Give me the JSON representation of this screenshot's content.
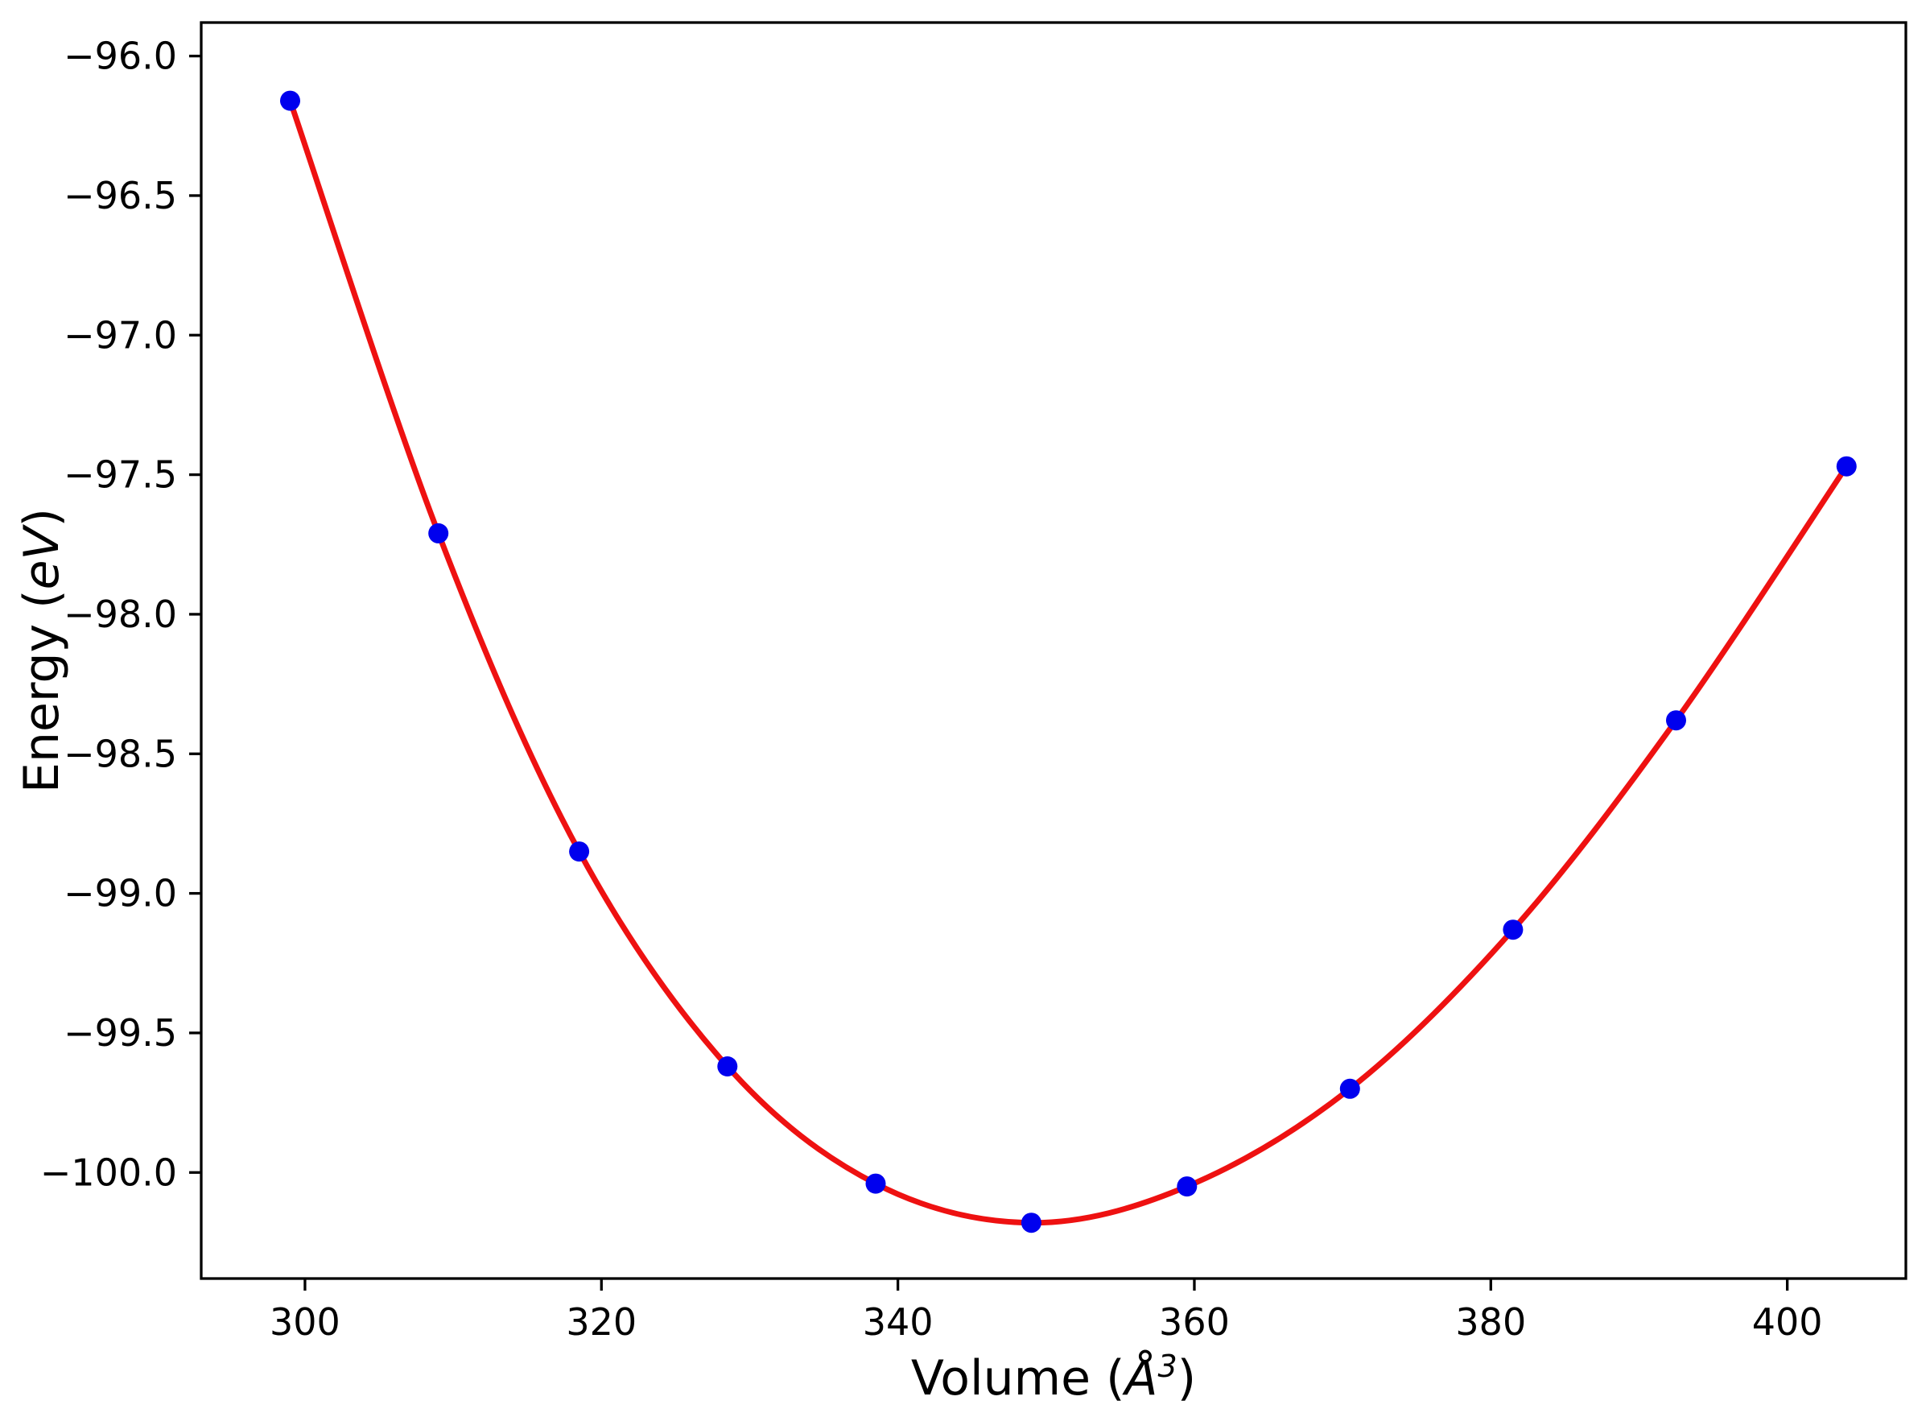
{
  "chart_data": {
    "type": "scatter",
    "title": "",
    "xlabel": "Volume (Å³)",
    "ylabel": "Energy (eV)",
    "xlim": [
      293,
      408
    ],
    "ylim": [
      -100.38,
      -95.88
    ],
    "grid": false,
    "legend": null,
    "axis_color": "#000000",
    "x_ticks": {
      "values": [
        300,
        320,
        340,
        360,
        380,
        400
      ],
      "labels": [
        "300",
        "320",
        "340",
        "360",
        "380",
        "400"
      ]
    },
    "y_ticks": {
      "values": [
        -96.0,
        -96.5,
        -97.0,
        -97.5,
        -98.0,
        -98.5,
        -99.0,
        -99.5,
        -100.0
      ],
      "labels": [
        "−96.0",
        "−96.5",
        "−97.0",
        "−97.5",
        "−98.0",
        "−98.5",
        "−99.0",
        "−99.5",
        "−100.0"
      ]
    },
    "series": [
      {
        "name": "calculated-energy-points",
        "type": "scatter",
        "marker": "circle",
        "color": "#0000ee",
        "x": [
          299,
          309,
          318.5,
          328.5,
          338.5,
          349,
          359.5,
          370.5,
          381.5,
          392.5,
          404
        ],
        "y": [
          -96.16,
          -97.71,
          -98.85,
          -99.62,
          -100.04,
          -100.18,
          -100.05,
          -99.7,
          -99.13,
          -98.38,
          -97.47
        ]
      },
      {
        "name": "equation-of-state-fit-curve",
        "type": "line",
        "color": "#ee1111",
        "linewidth": 7
      }
    ]
  },
  "labels": {
    "xlabel_prefix": "Volume (",
    "xlabel_symbol": "Å",
    "xlabel_superscript": "3",
    "xlabel_suffix": ")",
    "ylabel_prefix": "Energy (",
    "ylabel_symbol": "eV",
    "ylabel_suffix": ")"
  }
}
